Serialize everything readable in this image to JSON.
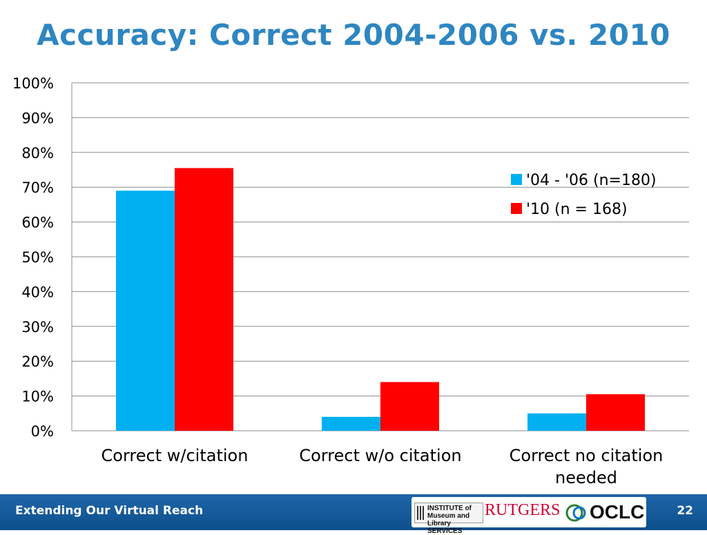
{
  "title": "Accuracy: Correct 2004-2006 vs. 2010",
  "footer": {
    "text": "Extending Our Virtual Reach",
    "page_number": "22",
    "logos": {
      "imls": "INSTITUTE of Museum and Library SERVICES",
      "rutgers": "RUTGERS",
      "oclc": "OCLC"
    }
  },
  "colors": {
    "title": "#2e86c1",
    "series_2004_2006": "#00b0f0",
    "series_2010": "#ff0000",
    "footer": "#1f66a8"
  },
  "chart_data": {
    "type": "bar",
    "categories": [
      [
        "Correct w/citation"
      ],
      [
        "Correct w/o citation"
      ],
      [
        "Correct no citation",
        "needed"
      ]
    ],
    "series": [
      {
        "name": "'04 - '06 (n=180)",
        "color": "#00b0f0",
        "values": [
          69,
          4,
          5
        ]
      },
      {
        "name": "'10 (n = 168)",
        "color": "#ff0000",
        "values": [
          75.5,
          14,
          10.5
        ]
      }
    ],
    "ylim": [
      0,
      100
    ],
    "yticks": [
      0,
      10,
      20,
      30,
      40,
      50,
      60,
      70,
      80,
      90,
      100
    ],
    "ytick_labels": [
      "0%",
      "10%",
      "20%",
      "30%",
      "40%",
      "50%",
      "60%",
      "70%",
      "80%",
      "90%",
      "100%"
    ],
    "grid": true,
    "legend_position": "right"
  }
}
